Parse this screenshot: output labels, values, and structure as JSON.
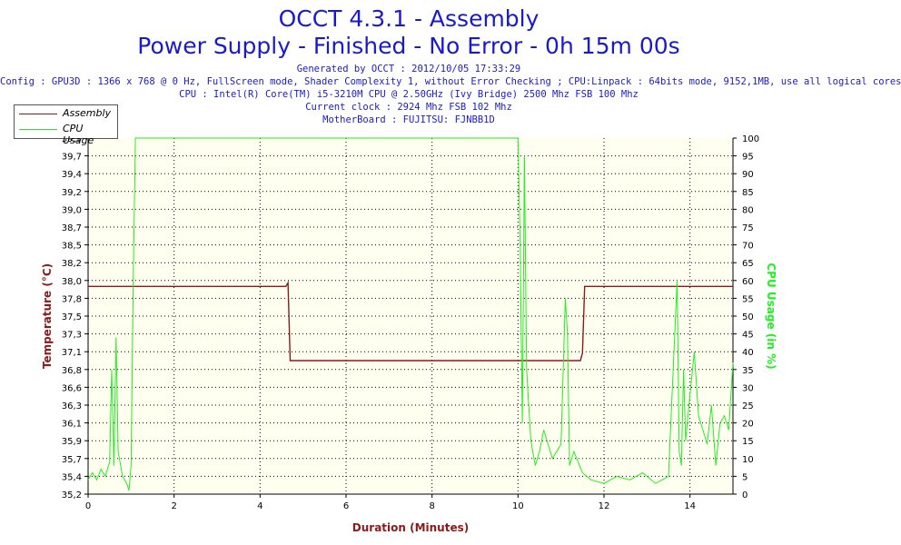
{
  "title": "OCCT 4.3.1 - Assembly",
  "subtitle": "Power Supply - Finished - No Error - 0h 15m 00s",
  "info_lines": [
    "Generated by OCCT : 2012/10/05 17:33:29",
    "Config : GPU3D : 1366 x 768 @ 0 Hz, FullScreen mode, Shader Complexity 1, without Error Checking ; CPU:Linpack : 64bits mode, 9152,1MB, use all logical cores",
    "CPU : Intel(R) Core(TM) i5-3210M CPU @ 2.50GHz (Ivy Bridge) 2500 Mhz FSB 100 Mhz",
    "Current clock : 2924 Mhz FSB 102 Mhz",
    "MotherBoard : FUJITSU: FJNBB1D"
  ],
  "colors": {
    "temperature": "#8b1a1a",
    "cpu": "#22ee22",
    "plot_bg": "#fffff0",
    "title": "#1a1acd"
  },
  "chart_data": {
    "type": "line",
    "xlabel": "Duration (Minutes)",
    "ylabel_left": "Temperature (°C)",
    "ylabel_right": "CPU Usage (in %)",
    "xlim": [
      0,
      15
    ],
    "ylim_left": [
      35.2,
      40.0
    ],
    "ylim_right": [
      0,
      100
    ],
    "x_ticks": [
      "0",
      "2",
      "4",
      "6",
      "8",
      "10",
      "12",
      "14"
    ],
    "y_left_ticks": [
      "35,2",
      "35,4",
      "35,7",
      "35,9",
      "36,1",
      "36,3",
      "36,6",
      "36,8",
      "37,1",
      "37,3",
      "37,5",
      "37,8",
      "38,0",
      "38,2",
      "38,5",
      "38,7",
      "39,0",
      "39,2",
      "39,4",
      "39,7",
      "39,9"
    ],
    "y_right_ticks": [
      "0",
      "5",
      "10",
      "15",
      "20",
      "25",
      "30",
      "35",
      "40",
      "45",
      "50",
      "55",
      "60",
      "65",
      "70",
      "75",
      "80",
      "85",
      "90",
      "95",
      "100"
    ],
    "grid": true,
    "legend_position": "top-left",
    "series": [
      {
        "name": "Assembly",
        "axis": "left",
        "x": [
          0,
          4.6,
          4.65,
          4.7,
          11.45,
          11.5,
          11.55,
          15
        ],
        "y": [
          38.0,
          38.0,
          38.05,
          37.0,
          37.0,
          37.1,
          38.0,
          38.0
        ]
      },
      {
        "name": "CPU Usage",
        "axis": "right",
        "x": [
          0,
          0.1,
          0.2,
          0.3,
          0.4,
          0.5,
          0.55,
          0.6,
          0.65,
          0.7,
          0.8,
          0.9,
          0.95,
          1.0,
          1.05,
          1.1,
          1.15,
          1.2,
          10.0,
          10.05,
          10.1,
          10.15,
          10.2,
          10.3,
          10.4,
          10.5,
          10.6,
          10.8,
          11.0,
          11.1,
          11.15,
          11.2,
          11.3,
          11.5,
          11.7,
          12.0,
          12.3,
          12.6,
          12.9,
          13.2,
          13.5,
          13.7,
          13.75,
          13.8,
          13.85,
          13.9,
          14.0,
          14.1,
          14.2,
          14.3,
          14.4,
          14.5,
          14.6,
          14.7,
          14.8,
          14.9,
          15.0
        ],
        "y": [
          4,
          6,
          4,
          7,
          5,
          9,
          35,
          8,
          44,
          12,
          5,
          3,
          1,
          8,
          60,
          100,
          100,
          100,
          100,
          70,
          20,
          95,
          35,
          15,
          8,
          12,
          18,
          10,
          14,
          55,
          45,
          8,
          12,
          6,
          4,
          3,
          5,
          4,
          6,
          3,
          5,
          60,
          12,
          8,
          35,
          15,
          28,
          40,
          22,
          18,
          14,
          25,
          8,
          20,
          22,
          18,
          37
        ]
      }
    ]
  }
}
